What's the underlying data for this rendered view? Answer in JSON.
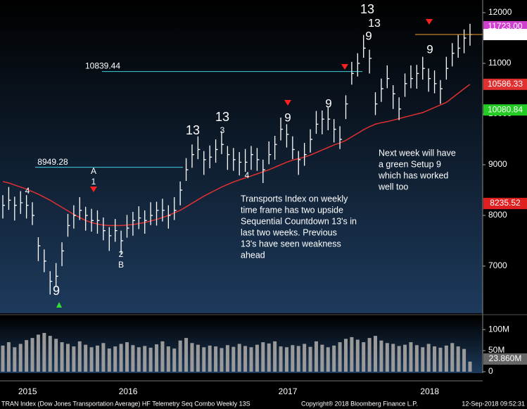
{
  "chart_data": {
    "type": "ohlc",
    "categories": [
      null,
      null,
      null,
      "2015",
      null,
      null,
      null,
      null,
      null,
      null,
      null,
      null,
      null,
      null,
      null,
      null,
      null,
      null,
      null,
      null,
      "2016",
      null,
      null,
      null,
      null,
      null,
      null,
      null,
      null,
      null,
      null,
      null,
      null,
      null,
      null,
      null,
      null,
      null,
      null,
      null,
      null,
      null,
      null,
      null,
      null,
      null,
      null,
      "2017",
      null,
      null,
      null,
      null,
      null,
      null,
      null,
      null,
      null,
      null,
      null,
      null,
      null,
      null,
      null,
      null,
      null,
      null,
      null,
      null,
      null,
      null,
      null,
      "2018",
      null,
      null,
      null,
      null,
      null,
      null,
      null,
      null
    ],
    "high": [
      8400,
      8560,
      8370,
      8480,
      8400,
      8260,
      7570,
      7330,
      6900,
      7060,
      7470,
      8030,
      8200,
      8360,
      8170,
      8130,
      8100,
      7960,
      7770,
      7930,
      7700,
      8010,
      8070,
      8180,
      8100,
      8260,
      8270,
      8330,
      8200,
      8360,
      8670,
      9130,
      9400,
      9560,
      9270,
      9380,
      9500,
      9660,
      9370,
      9330,
      9250,
      9310,
      9370,
      9330,
      9100,
      9460,
      9570,
      9930,
      9800,
      9560,
      9270,
      9430,
      9700,
      10060,
      10070,
      10130,
      9900,
      9760,
      10370,
      11030,
      11200,
      11560,
      11270,
      10430,
      10700,
      10960,
      10570,
      10330,
      10800,
      10960,
      10970,
      11130,
      10900,
      10860,
      10670,
      11130,
      11400,
      11560,
      11670,
      11780
    ],
    "low": [
      7940,
      8110,
      7900,
      8030,
      7940,
      7810,
      7100,
      6880,
      6440,
      6610,
      7000,
      7580,
      7740,
      7910,
      7700,
      7680,
      7640,
      7510,
      7300,
      7480,
      7240,
      7560,
      7600,
      7730,
      7640,
      7810,
      7800,
      7880,
      7740,
      7910,
      8200,
      8680,
      8940,
      9110,
      8800,
      8930,
      9040,
      9210,
      8900,
      8880,
      8790,
      8860,
      8900,
      8880,
      8640,
      9010,
      9100,
      9480,
      9340,
      9110,
      8800,
      8980,
      9240,
      9610,
      9600,
      9680,
      9440,
      9310,
      9900,
      10580,
      10740,
      11110,
      10800,
      9980,
      10240,
      10510,
      10100,
      9880,
      10340,
      10510,
      10500,
      10680,
      10440,
      10410,
      10200,
      10680,
      10940,
      11110,
      11200,
      11350
    ],
    "close": [
      8200,
      8300,
      8200,
      8250,
      8200,
      8000,
      7400,
      7100,
      6700,
      6800,
      7300,
      7800,
      8000,
      8100,
      8000,
      7900,
      7900,
      7700,
      7600,
      7700,
      7500,
      7750,
      7900,
      7950,
      7900,
      8000,
      8100,
      8100,
      8000,
      8100,
      8500,
      8900,
      9200,
      9300,
      9100,
      9150,
      9300,
      9400,
      9200,
      9100,
      9050,
      9050,
      9200,
      9100,
      8900,
      9200,
      9400,
      9700,
      9600,
      9300,
      9100,
      9200,
      9500,
      9800,
      9900,
      9900,
      9700,
      9500,
      10200,
      10800,
      11000,
      11300,
      11100,
      10200,
      10500,
      10700,
      10400,
      10100,
      10600,
      10700,
      10800,
      10900,
      10700,
      10600,
      10500,
      10900,
      11200,
      11300,
      11500,
      11568.77
    ],
    "bar_color": "#ffffff",
    "moving_average": {
      "color": "#e03030",
      "values": [
        8670,
        8640,
        8600,
        8560,
        8520,
        8470,
        8420,
        8360,
        8300,
        8230,
        8160,
        8090,
        8020,
        7960,
        7900,
        7860,
        7830,
        7810,
        7800,
        7800,
        7800,
        7810,
        7820,
        7840,
        7860,
        7890,
        7920,
        7960,
        8000,
        8050,
        8100,
        8170,
        8240,
        8310,
        8380,
        8440,
        8500,
        8560,
        8610,
        8660,
        8700,
        8740,
        8780,
        8820,
        8860,
        8900,
        8950,
        9000,
        9050,
        9090,
        9120,
        9150,
        9190,
        9240,
        9290,
        9340,
        9390,
        9430,
        9480,
        9550,
        9620,
        9690,
        9750,
        9800,
        9830,
        9850,
        9880,
        9910,
        9940,
        9970,
        10000,
        10030,
        10080,
        10130,
        10180,
        10230,
        10320,
        10410,
        10500,
        10586.33
      ]
    },
    "ylim": [
      6070,
      12250
    ],
    "yticks": [
      7000,
      8000,
      9000,
      10000,
      11000,
      12000
    ],
    "price_markers": [
      {
        "value": 11723,
        "label": "11723.00",
        "color": "#d040d0"
      },
      {
        "value": 10080.84,
        "color": "#22cc22"
      },
      {
        "value": 8235.52,
        "color": "#e02020"
      }
    ],
    "levels": [
      {
        "value": 10839.44,
        "color": "#40d0e0"
      },
      {
        "value": 8949.28,
        "color": "#40d0e0"
      }
    ],
    "volume": {
      "color": "#9a9a9a",
      "values": [
        62,
        70,
        58,
        66,
        75,
        80,
        88,
        92,
        85,
        78,
        70,
        66,
        60,
        72,
        64,
        58,
        62,
        68,
        55,
        60,
        66,
        70,
        63,
        58,
        61,
        57,
        65,
        72,
        60,
        55,
        74,
        80,
        68,
        64,
        58,
        62,
        60,
        56,
        63,
        59,
        66,
        61,
        58,
        64,
        70,
        67,
        72,
        60,
        58,
        63,
        61,
        66,
        59,
        72,
        64,
        58,
        62,
        70,
        78,
        82,
        76,
        70,
        80,
        85,
        74,
        68,
        66,
        61,
        64,
        70,
        63,
        58,
        66,
        60,
        57,
        62,
        68,
        60,
        54,
        23.86
      ],
      "last_label": "23.860M",
      "ylim": [
        0,
        132
      ],
      "yticks": [
        0,
        {
          "value": 50,
          "label": "50M"
        },
        {
          "value": 100,
          "label": "100M"
        }
      ]
    },
    "annotations": [
      {
        "text": "13",
        "color": "#d040d0"
      },
      {
        "text": "13",
        "color": "#d040d0"
      },
      {
        "text": "13",
        "color": "#e03030"
      },
      {
        "text": "13",
        "color": "#e03030"
      },
      {
        "text": "9",
        "color": "#33dd33"
      },
      {
        "text": "9",
        "color": "#33dd33"
      },
      {
        "text": "9",
        "color": "#33dd33"
      },
      {
        "text": "9",
        "color": "#33dd33"
      },
      {
        "text": "9",
        "color": "#33dd33"
      },
      {
        "text": "A",
        "color": "#f0d020"
      },
      {
        "text": "B",
        "color": "#f0d020"
      },
      {
        "text": "1",
        "color": "#40d0e0"
      },
      {
        "text": "2",
        "color": "#40d0e0"
      },
      {
        "text": "3",
        "color": "#40d0e0"
      },
      {
        "text": "4",
        "color": "#40d0e0"
      },
      {
        "text": "4",
        "color": "#f0d020"
      }
    ],
    "notes": [
      [
        "Transports Index on weekly",
        "time frame has two upside",
        "Sequential Countdown 13's in",
        "last two weeks.  Previous",
        "13's have seen weakness",
        "ahead"
      ],
      [
        "Next week will have",
        "a green Setup 9",
        "which has worked",
        "well too"
      ]
    ],
    "footer": {
      "left": "TRAN Index (Dow Jones Transportation Average) HF Telemetry Seq Combo  Weekly 13S",
      "center": "Copyright® 2018 Bloomberg Finance L.P.",
      "right": "12-Sep-2018 09:52:31"
    }
  }
}
